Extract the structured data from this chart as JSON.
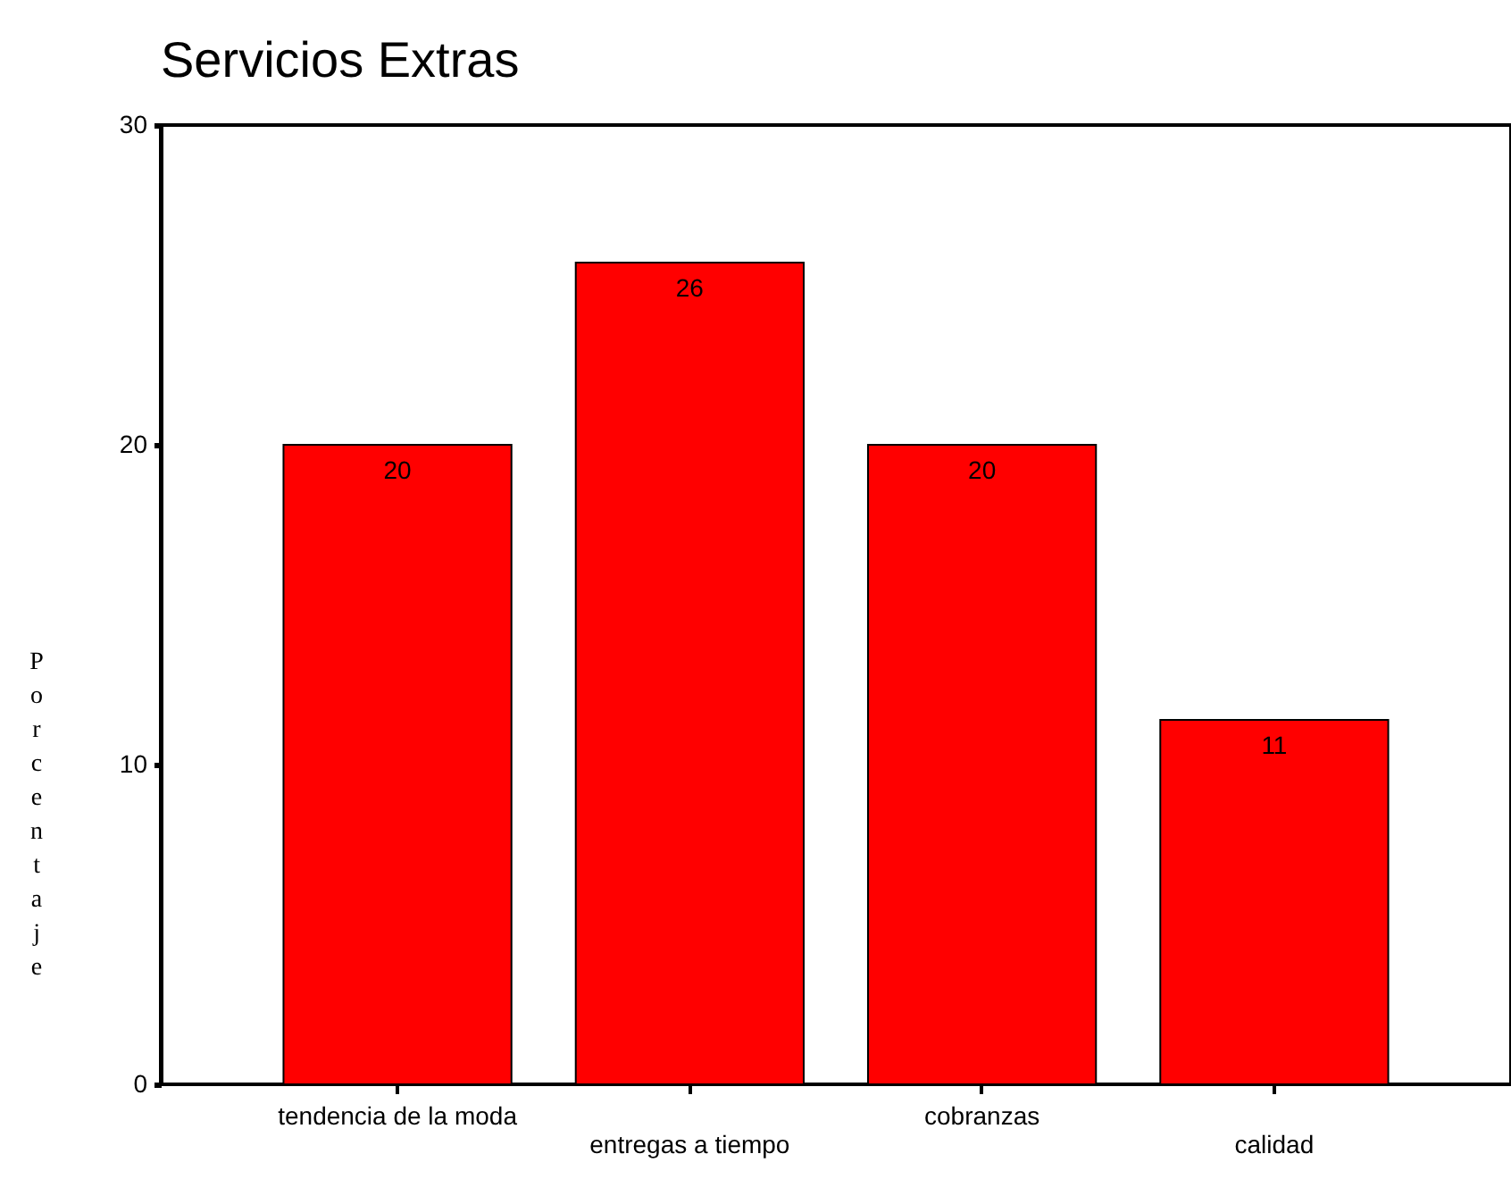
{
  "chart_data": {
    "type": "bar",
    "title": "Servicios Extras",
    "ylabel": "Porcentaje",
    "categories": [
      "tendencia de la moda",
      "entregas a tiempo",
      "cobranzas",
      "calidad"
    ],
    "values": [
      20,
      25.7,
      20,
      11.4
    ],
    "value_labels": [
      "20",
      "26",
      "20",
      "11"
    ],
    "color": "#ff0000",
    "ylim": [
      0,
      30
    ],
    "yticks": [
      0,
      10,
      20,
      30
    ],
    "grid": false
  }
}
